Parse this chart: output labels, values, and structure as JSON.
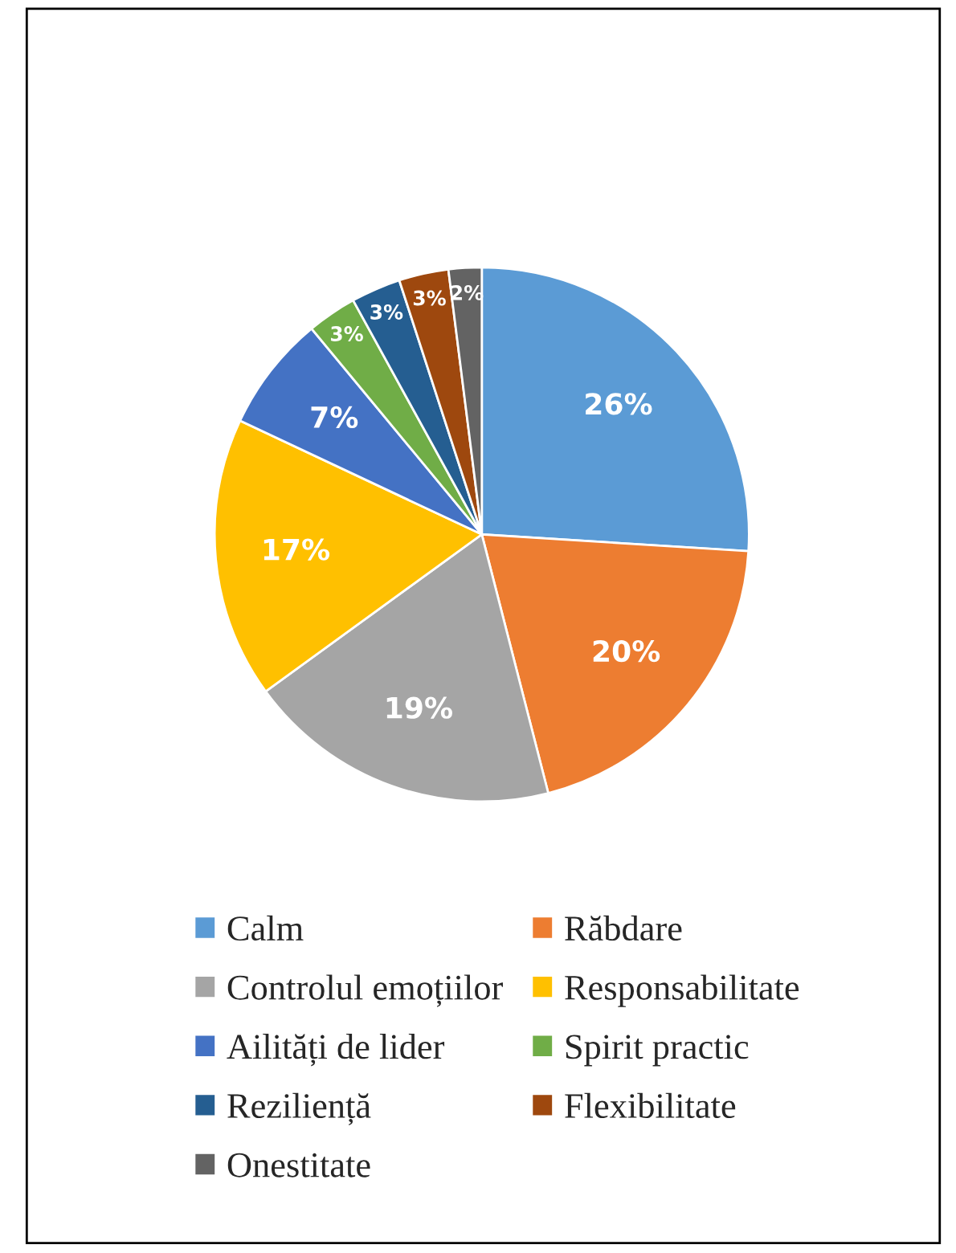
{
  "chart_data": {
    "type": "pie",
    "categories": [
      "Calm",
      "Răbdare",
      "Controlul emoțiilor",
      "Responsabilitate",
      "Ailități de lider",
      "Spirit practic",
      "Reziliență",
      "Flexibilitate",
      "Onestitate"
    ],
    "values": [
      26,
      20,
      19,
      17,
      7,
      3,
      3,
      3,
      2
    ],
    "value_labels": [
      "26%",
      "20%",
      "19%",
      "17%",
      "7%",
      "3%",
      "3%",
      "3%",
      "2%"
    ],
    "colors": [
      "#5b9bd5",
      "#ed7d31",
      "#a5a5a5",
      "#ffc000",
      "#4472c4",
      "#70ad47",
      "#255e91",
      "#9e480e",
      "#636363"
    ],
    "legend": "bottom"
  }
}
